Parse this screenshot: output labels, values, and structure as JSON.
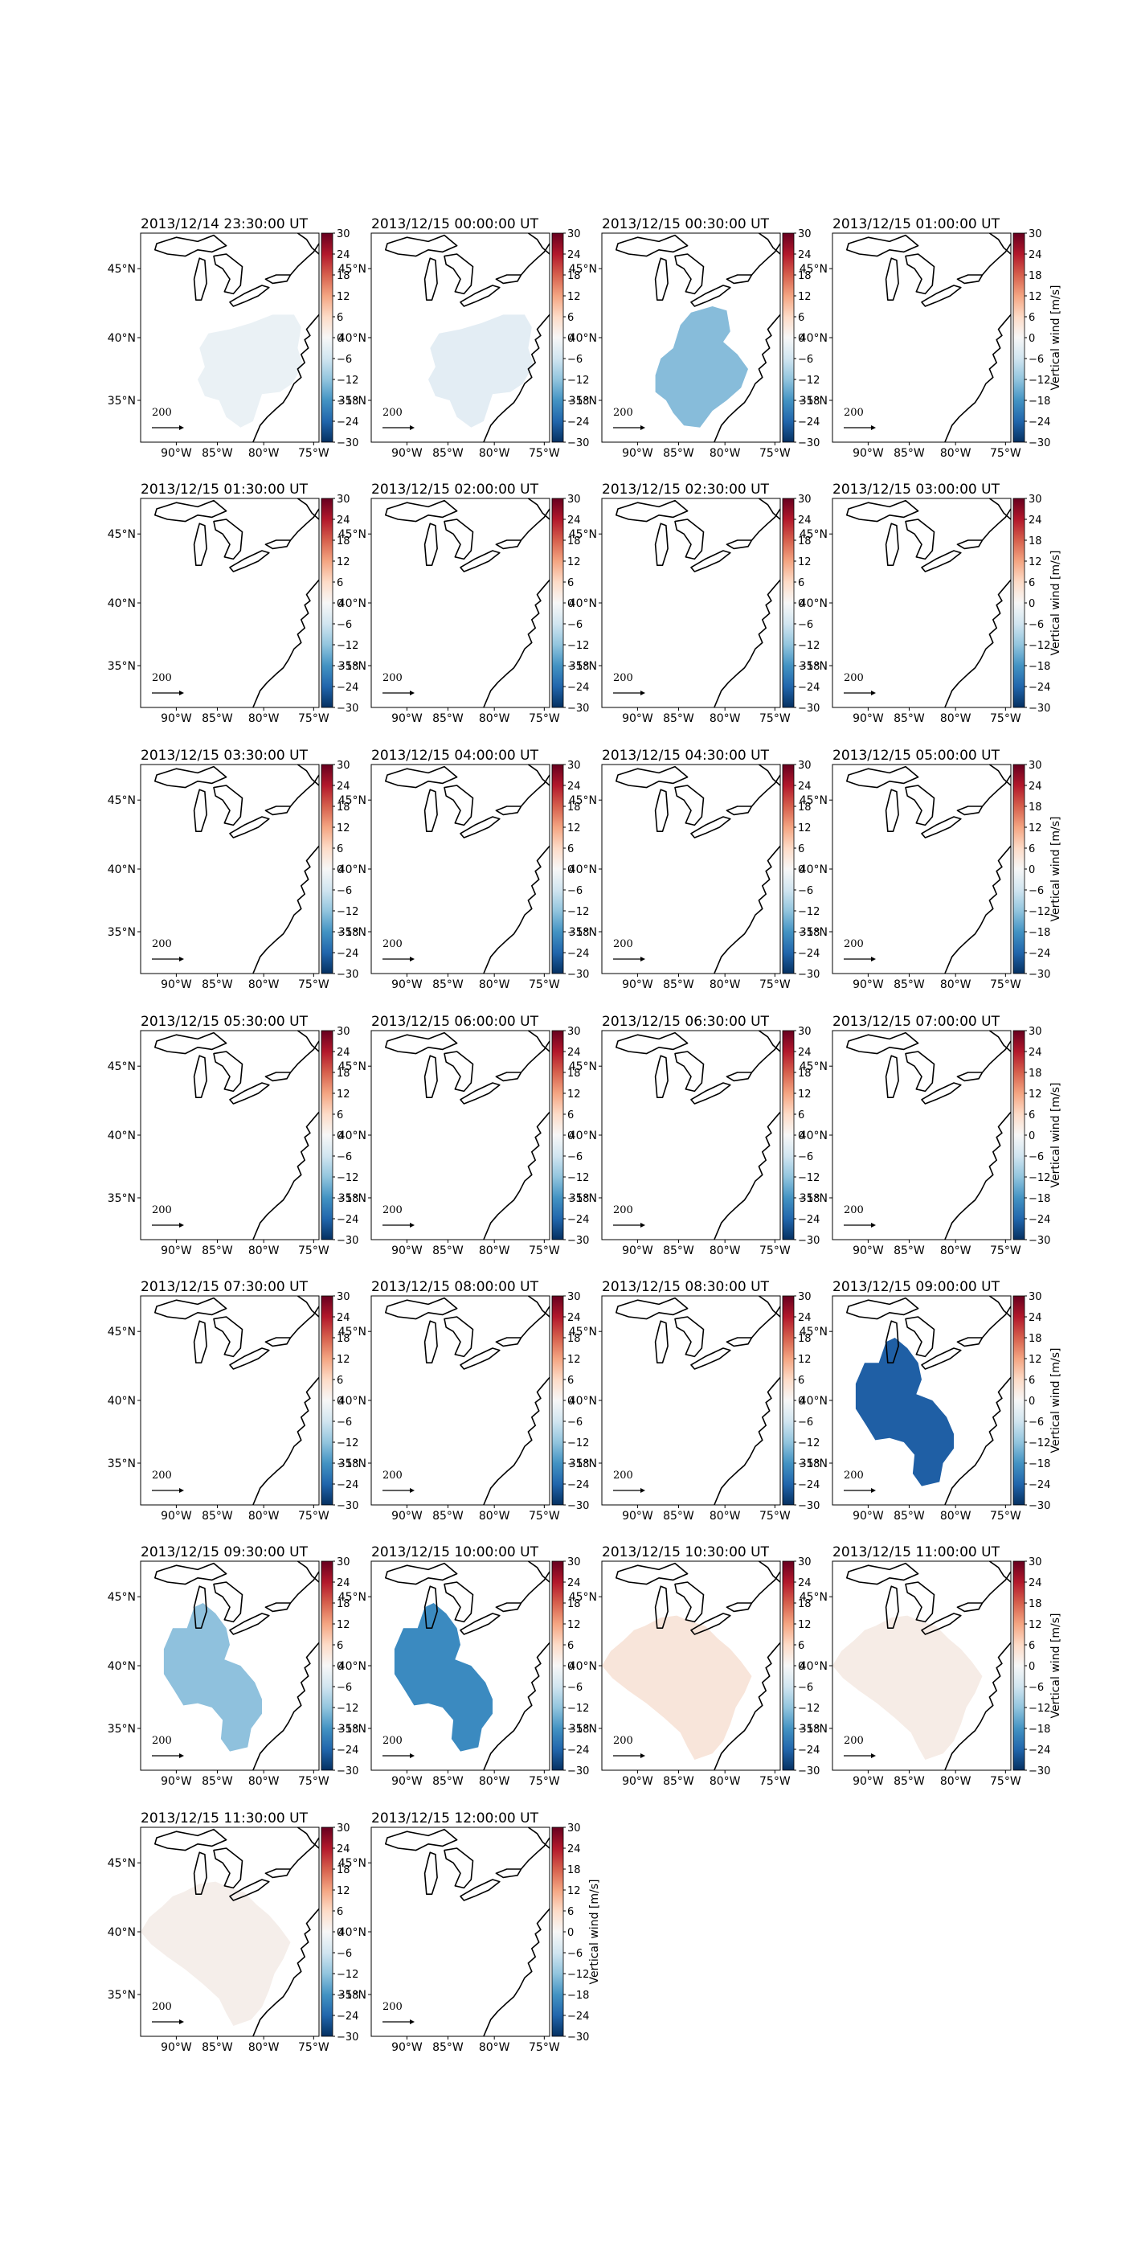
{
  "figure": {
    "panels": [
      {
        "title": "2013/12/14 23:30:00 UT",
        "fill": "#eaf1f5",
        "shape": "A",
        "cb_label": ""
      },
      {
        "title": "2013/12/15 00:00:00 UT",
        "fill": "#e3edf4",
        "shape": "A",
        "cb_label": ""
      },
      {
        "title": "2013/12/15 00:30:00 UT",
        "fill": "#87bcda",
        "shape": "B",
        "cb_label": ""
      },
      {
        "title": "2013/12/15 01:00:00 UT",
        "fill": "none",
        "shape": "none",
        "cb_label": "Vertical wind [m/s]"
      },
      {
        "title": "2013/12/15 01:30:00 UT",
        "fill": "none",
        "shape": "none",
        "cb_label": ""
      },
      {
        "title": "2013/12/15 02:00:00 UT",
        "fill": "none",
        "shape": "none",
        "cb_label": ""
      },
      {
        "title": "2013/12/15 02:30:00 UT",
        "fill": "none",
        "shape": "none",
        "cb_label": ""
      },
      {
        "title": "2013/12/15 03:00:00 UT",
        "fill": "none",
        "shape": "none",
        "cb_label": "Vertical wind [m/s]"
      },
      {
        "title": "2013/12/15 03:30:00 UT",
        "fill": "none",
        "shape": "none",
        "cb_label": ""
      },
      {
        "title": "2013/12/15 04:00:00 UT",
        "fill": "none",
        "shape": "none",
        "cb_label": ""
      },
      {
        "title": "2013/12/15 04:30:00 UT",
        "fill": "none",
        "shape": "none",
        "cb_label": ""
      },
      {
        "title": "2013/12/15 05:00:00 UT",
        "fill": "none",
        "shape": "none",
        "cb_label": "Vertical wind [m/s]"
      },
      {
        "title": "2013/12/15 05:30:00 UT",
        "fill": "none",
        "shape": "none",
        "cb_label": ""
      },
      {
        "title": "2013/12/15 06:00:00 UT",
        "fill": "none",
        "shape": "none",
        "cb_label": ""
      },
      {
        "title": "2013/12/15 06:30:00 UT",
        "fill": "none",
        "shape": "none",
        "cb_label": ""
      },
      {
        "title": "2013/12/15 07:00:00 UT",
        "fill": "none",
        "shape": "none",
        "cb_label": "Vertical wind [m/s]"
      },
      {
        "title": "2013/12/15 07:30:00 UT",
        "fill": "none",
        "shape": "none",
        "cb_label": ""
      },
      {
        "title": "2013/12/15 08:00:00 UT",
        "fill": "none",
        "shape": "none",
        "cb_label": ""
      },
      {
        "title": "2013/12/15 08:30:00 UT",
        "fill": "none",
        "shape": "none",
        "cb_label": ""
      },
      {
        "title": "2013/12/15 09:00:00 UT",
        "fill": "#1f5fa5",
        "shape": "C",
        "cb_label": "Vertical wind [m/s]"
      },
      {
        "title": "2013/12/15 09:30:00 UT",
        "fill": "#8fc1dd",
        "shape": "C",
        "cb_label": ""
      },
      {
        "title": "2013/12/15 10:00:00 UT",
        "fill": "#3b8ac0",
        "shape": "C",
        "cb_label": ""
      },
      {
        "title": "2013/12/15 10:30:00 UT",
        "fill": "#f8e5da",
        "shape": "D",
        "cb_label": ""
      },
      {
        "title": "2013/12/15 11:00:00 UT",
        "fill": "#f6ece6",
        "shape": "D",
        "cb_label": "Vertical wind [m/s]"
      },
      {
        "title": "2013/12/15 11:30:00 UT",
        "fill": "#f5eeea",
        "shape": "D",
        "cb_label": ""
      },
      {
        "title": "2013/12/15 12:00:00 UT",
        "fill": "none",
        "shape": "none",
        "cb_label": "Vertical wind [m/s]"
      }
    ],
    "lat_ticks": [
      "45°N",
      "40°N",
      "35°N"
    ],
    "lon_ticks": [
      "90°W",
      "85°W",
      "80°W",
      "75°W"
    ],
    "colorbar_ticks": [
      "30",
      "24",
      "18",
      "12",
      "6",
      "0",
      "−6",
      "−12",
      "−18",
      "−24",
      "−30"
    ],
    "colorbar_range": [
      -30,
      30
    ],
    "colormap": "RdBu_r",
    "arrow_label": "200"
  }
}
